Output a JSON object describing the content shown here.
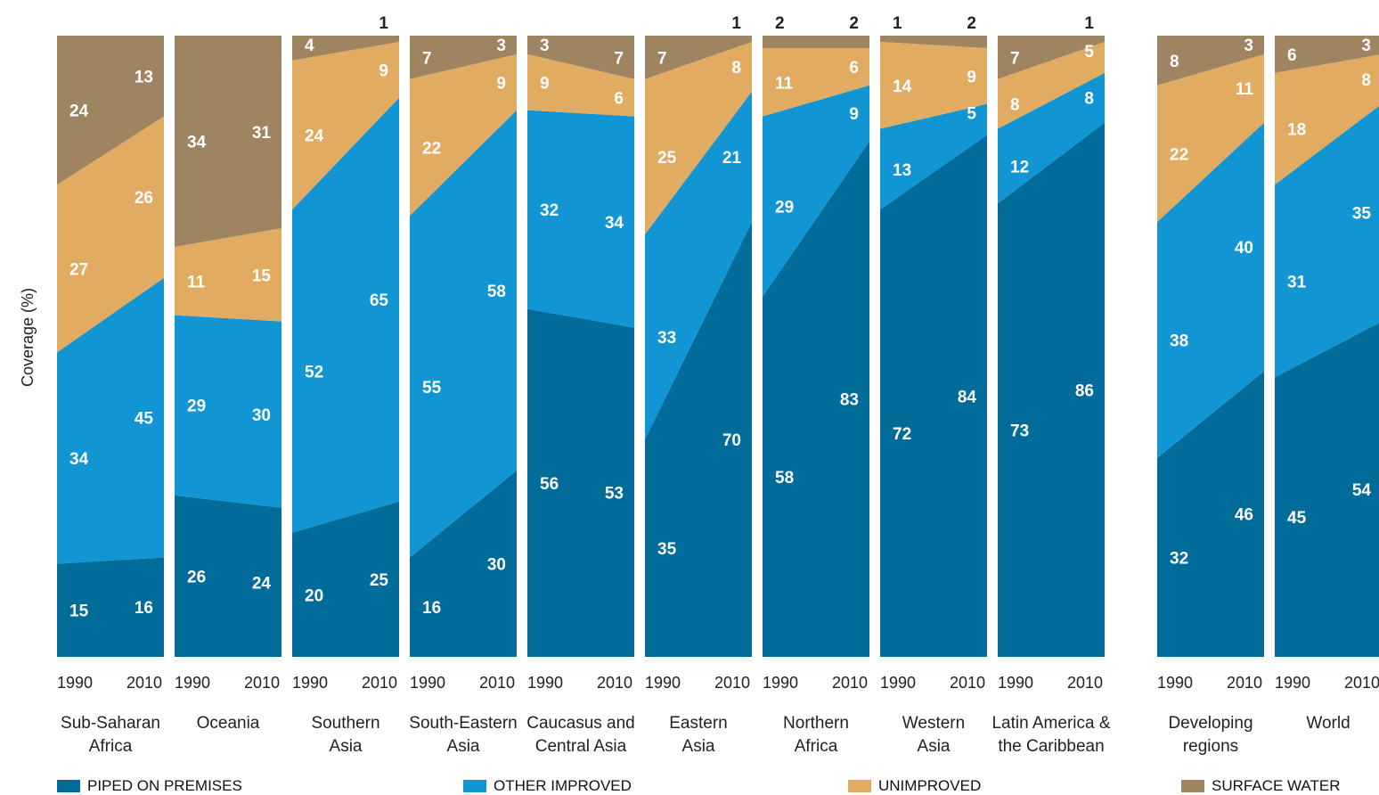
{
  "chart_data": {
    "type": "area",
    "ylabel": "Coverage (%)",
    "ylim": [
      0,
      100
    ],
    "x_ticks": [
      "1990",
      "2010"
    ],
    "series": [
      {
        "name": "PIPED ON PREMISES",
        "color": "#016b9a"
      },
      {
        "name": "OTHER IMPROVED",
        "color": "#1195d3"
      },
      {
        "name": "UNIMPROVED",
        "color": "#e1ab62"
      },
      {
        "name": "SURFACE WATER",
        "color": "#9f8462"
      }
    ],
    "regions": [
      {
        "name": "Sub-Saharan Africa",
        "label_lines": [
          "Sub-Saharan",
          "Africa"
        ],
        "1990": [
          15,
          34,
          27,
          24
        ],
        "2010": [
          16,
          45,
          26,
          13
        ]
      },
      {
        "name": "Oceania",
        "label_lines": [
          "Oceania"
        ],
        "1990": [
          26,
          29,
          11,
          34
        ],
        "2010": [
          24,
          30,
          15,
          31
        ]
      },
      {
        "name": "Southern Asia",
        "label_lines": [
          "Southern",
          "Asia"
        ],
        "1990": [
          20,
          52,
          24,
          4
        ],
        "2010": [
          25,
          65,
          9,
          1
        ]
      },
      {
        "name": "South-Eastern Asia",
        "label_lines": [
          "South-Eastern",
          "Asia"
        ],
        "1990": [
          16,
          55,
          22,
          7
        ],
        "2010": [
          30,
          58,
          9,
          3
        ]
      },
      {
        "name": "Caucasus and Central Asia",
        "label_lines": [
          "Caucasus and",
          "Central Asia"
        ],
        "1990": [
          56,
          32,
          9,
          3
        ],
        "2010": [
          53,
          34,
          6,
          7
        ]
      },
      {
        "name": "Eastern Asia",
        "label_lines": [
          "Eastern",
          "Asia"
        ],
        "1990": [
          35,
          33,
          25,
          7
        ],
        "2010": [
          70,
          21,
          8,
          1
        ]
      },
      {
        "name": "Northern Africa",
        "label_lines": [
          "Northern",
          "Africa"
        ],
        "1990": [
          58,
          29,
          11,
          2
        ],
        "2010": [
          83,
          9,
          6,
          2
        ]
      },
      {
        "name": "Western Asia",
        "label_lines": [
          "Western",
          "Asia"
        ],
        "1990": [
          72,
          13,
          14,
          1
        ],
        "2010": [
          84,
          5,
          9,
          2
        ]
      },
      {
        "name": "Latin America & the Caribbean",
        "label_lines": [
          "Latin America &",
          "the Caribbean"
        ],
        "1990": [
          73,
          12,
          8,
          7
        ],
        "2010": [
          86,
          8,
          5,
          1
        ]
      },
      {
        "name": "Developing regions",
        "label_lines": [
          "Developing",
          "regions"
        ],
        "1990": [
          32,
          38,
          22,
          8
        ],
        "2010": [
          46,
          40,
          11,
          3
        ]
      },
      {
        "name": "World",
        "label_lines": [
          "World"
        ],
        "1990": [
          45,
          31,
          18,
          6
        ],
        "2010": [
          54,
          35,
          8,
          3
        ]
      }
    ]
  }
}
